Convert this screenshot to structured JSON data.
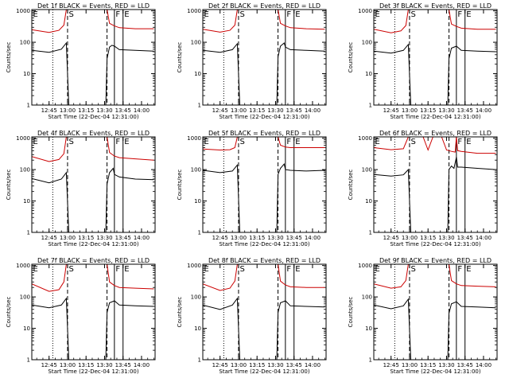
{
  "chart_data": {
    "type": "line",
    "y_axis_label": "Counts/sec",
    "x_axis_label": "Start Time (22-Dec-04 12:31:00)",
    "x_tick_labels": [
      "12:45",
      "13:00",
      "13:15",
      "13:30",
      "13:45",
      "14:00"
    ],
    "x_tick_minutes": [
      765,
      780,
      795,
      810,
      825,
      840
    ],
    "xlim_minutes": [
      751,
      851
    ],
    "y_scale": "log",
    "y_tick_labels": [
      "1",
      "10",
      "100",
      "1000"
    ],
    "ylim": [
      1,
      1100
    ],
    "series_colors": {
      "events": "#000000",
      "lld": "#cc0000"
    },
    "markers": [
      {
        "label": "E",
        "minute": 751,
        "style": "solid"
      },
      {
        "label": "",
        "minute": 768,
        "style": "dotted"
      },
      {
        "label": "S",
        "minute": 780,
        "style": "dashed"
      },
      {
        "label": "",
        "minute": 812,
        "style": "dashed"
      },
      {
        "label": "F",
        "minute": 818,
        "style": "solid"
      },
      {
        "label": "E",
        "minute": 825,
        "style": "solid"
      }
    ],
    "panels": [
      {
        "title": "Det 1f BLACK = Events, RED = LLD",
        "events": [
          [
            751,
            55
          ],
          [
            765,
            48
          ],
          [
            775,
            60
          ],
          [
            779,
            95
          ],
          [
            781,
            0
          ],
          [
            811,
            0
          ],
          [
            812,
            30
          ],
          [
            814,
            70
          ],
          [
            816,
            80
          ],
          [
            818,
            75
          ],
          [
            822,
            58
          ],
          [
            835,
            55
          ],
          [
            850,
            52
          ]
        ],
        "lld": [
          [
            751,
            250
          ],
          [
            765,
            205
          ],
          [
            773,
            240
          ],
          [
            777,
            350
          ],
          [
            779,
            1100
          ],
          [
            812,
            1100
          ],
          [
            814,
            400
          ],
          [
            818,
            330
          ],
          [
            822,
            290
          ],
          [
            835,
            270
          ],
          [
            850,
            270
          ]
        ]
      },
      {
        "title": "Det 2f BLACK = Events, RED = LLD",
        "events": [
          [
            751,
            55
          ],
          [
            765,
            48
          ],
          [
            775,
            58
          ],
          [
            779,
            90
          ],
          [
            781,
            0
          ],
          [
            811,
            0
          ],
          [
            812,
            35
          ],
          [
            814,
            75
          ],
          [
            817,
            95
          ],
          [
            818,
            70
          ],
          [
            822,
            58
          ],
          [
            835,
            55
          ],
          [
            850,
            52
          ]
        ],
        "lld": [
          [
            751,
            260
          ],
          [
            765,
            210
          ],
          [
            773,
            240
          ],
          [
            777,
            350
          ],
          [
            779,
            1100
          ],
          [
            812,
            1100
          ],
          [
            814,
            400
          ],
          [
            818,
            330
          ],
          [
            822,
            290
          ],
          [
            835,
            270
          ],
          [
            850,
            260
          ]
        ]
      },
      {
        "title": "Det 3f BLACK = Events, RED = LLD",
        "events": [
          [
            751,
            52
          ],
          [
            765,
            45
          ],
          [
            775,
            55
          ],
          [
            779,
            85
          ],
          [
            781,
            0
          ],
          [
            811,
            0
          ],
          [
            812,
            30
          ],
          [
            814,
            65
          ],
          [
            818,
            75
          ],
          [
            822,
            55
          ],
          [
            835,
            52
          ],
          [
            850,
            50
          ]
        ],
        "lld": [
          [
            751,
            260
          ],
          [
            765,
            200
          ],
          [
            773,
            230
          ],
          [
            777,
            340
          ],
          [
            779,
            1100
          ],
          [
            812,
            1100
          ],
          [
            814,
            380
          ],
          [
            818,
            320
          ],
          [
            822,
            280
          ],
          [
            835,
            260
          ],
          [
            850,
            260
          ]
        ]
      },
      {
        "title": "Det 4f BLACK = Events, RED = LLD",
        "events": [
          [
            751,
            52
          ],
          [
            765,
            38
          ],
          [
            775,
            50
          ],
          [
            779,
            80
          ],
          [
            781,
            0
          ],
          [
            811,
            0
          ],
          [
            812,
            35
          ],
          [
            814,
            80
          ],
          [
            817,
            110
          ],
          [
            818,
            70
          ],
          [
            822,
            58
          ],
          [
            835,
            50
          ],
          [
            850,
            48
          ]
        ],
        "lld": [
          [
            751,
            260
          ],
          [
            765,
            180
          ],
          [
            773,
            210
          ],
          [
            777,
            320
          ],
          [
            779,
            1100
          ],
          [
            812,
            1100
          ],
          [
            814,
            350
          ],
          [
            818,
            270
          ],
          [
            822,
            240
          ],
          [
            835,
            220
          ],
          [
            850,
            200
          ]
        ]
      },
      {
        "title": "Det 5f BLACK = Events, RED = LLD",
        "events": [
          [
            751,
            95
          ],
          [
            765,
            80
          ],
          [
            775,
            90
          ],
          [
            779,
            140
          ],
          [
            781,
            0
          ],
          [
            811,
            0
          ],
          [
            812,
            70
          ],
          [
            814,
            110
          ],
          [
            817,
            150
          ],
          [
            818,
            100
          ],
          [
            822,
            95
          ],
          [
            835,
            90
          ],
          [
            850,
            95
          ]
        ],
        "lld": [
          [
            751,
            450
          ],
          [
            765,
            420
          ],
          [
            773,
            430
          ],
          [
            777,
            500
          ],
          [
            779,
            1100
          ],
          [
            812,
            1100
          ],
          [
            814,
            600
          ],
          [
            818,
            520
          ],
          [
            822,
            500
          ],
          [
            835,
            500
          ],
          [
            850,
            500
          ]
        ]
      },
      {
        "title": "Det 6f BLACK = Events, RED = LLD",
        "events": [
          [
            751,
            70
          ],
          [
            765,
            62
          ],
          [
            775,
            68
          ],
          [
            779,
            100
          ],
          [
            781,
            0
          ],
          [
            811,
            0
          ],
          [
            812,
            100
          ],
          [
            814,
            130
          ],
          [
            816,
            110
          ],
          [
            818,
            250
          ],
          [
            819,
            120
          ],
          [
            822,
            120
          ],
          [
            835,
            110
          ],
          [
            850,
            100
          ]
        ],
        "lld": [
          [
            751,
            500
          ],
          [
            765,
            430
          ],
          [
            775,
            460
          ],
          [
            779,
            1100
          ],
          [
            791,
            1100
          ],
          [
            795,
            420
          ],
          [
            799,
            1100
          ],
          [
            806,
            1100
          ],
          [
            810,
            420
          ],
          [
            812,
            400
          ],
          [
            814,
            380
          ],
          [
            817,
            360
          ],
          [
            818,
            1100
          ],
          [
            819,
            400
          ],
          [
            822,
            380
          ],
          [
            835,
            330
          ],
          [
            850,
            330
          ]
        ]
      },
      {
        "title": "Det 7f BLACK = Events, RED = LLD",
        "events": [
          [
            751,
            55
          ],
          [
            765,
            45
          ],
          [
            775,
            55
          ],
          [
            779,
            90
          ],
          [
            781,
            0
          ],
          [
            811,
            0
          ],
          [
            812,
            32
          ],
          [
            814,
            65
          ],
          [
            818,
            75
          ],
          [
            822,
            55
          ],
          [
            835,
            52
          ],
          [
            850,
            50
          ]
        ],
        "lld": [
          [
            751,
            260
          ],
          [
            765,
            150
          ],
          [
            773,
            170
          ],
          [
            777,
            300
          ],
          [
            779,
            1100
          ],
          [
            812,
            1100
          ],
          [
            814,
            300
          ],
          [
            818,
            230
          ],
          [
            822,
            200
          ],
          [
            835,
            190
          ],
          [
            850,
            180
          ]
        ]
      },
      {
        "title": "Det 8f BLACK = Events, RED = LLD",
        "events": [
          [
            751,
            55
          ],
          [
            765,
            40
          ],
          [
            775,
            55
          ],
          [
            779,
            90
          ],
          [
            781,
            0
          ],
          [
            811,
            0
          ],
          [
            812,
            32
          ],
          [
            814,
            65
          ],
          [
            818,
            75
          ],
          [
            822,
            52
          ],
          [
            835,
            50
          ],
          [
            850,
            48
          ]
        ],
        "lld": [
          [
            751,
            260
          ],
          [
            765,
            160
          ],
          [
            773,
            190
          ],
          [
            777,
            320
          ],
          [
            779,
            1100
          ],
          [
            812,
            1100
          ],
          [
            814,
            320
          ],
          [
            818,
            240
          ],
          [
            822,
            210
          ],
          [
            835,
            200
          ],
          [
            850,
            200
          ]
        ]
      },
      {
        "title": "Det 9f BLACK = Events, RED = LLD",
        "events": [
          [
            751,
            55
          ],
          [
            765,
            42
          ],
          [
            775,
            52
          ],
          [
            779,
            85
          ],
          [
            781,
            0
          ],
          [
            811,
            0
          ],
          [
            812,
            30
          ],
          [
            814,
            60
          ],
          [
            818,
            70
          ],
          [
            822,
            50
          ],
          [
            835,
            48
          ],
          [
            850,
            45
          ]
        ],
        "lld": [
          [
            751,
            260
          ],
          [
            765,
            190
          ],
          [
            773,
            210
          ],
          [
            777,
            330
          ],
          [
            779,
            1100
          ],
          [
            812,
            1100
          ],
          [
            814,
            330
          ],
          [
            818,
            260
          ],
          [
            822,
            230
          ],
          [
            835,
            220
          ],
          [
            850,
            210
          ]
        ]
      }
    ]
  }
}
